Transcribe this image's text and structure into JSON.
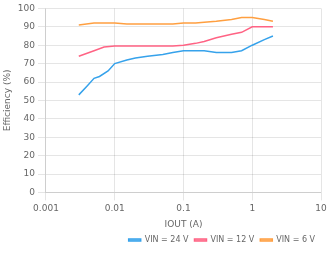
{
  "chart_data": {
    "type": "line",
    "xlabel": "IOUT (A)",
    "ylabel": "Efficiency (%)",
    "log": "x",
    "xlim": [
      0.001,
      10
    ],
    "xticks": [
      0.001,
      0.01,
      0.1,
      1,
      10
    ],
    "ylim": [
      0,
      100
    ],
    "yticks": [
      0,
      10,
      20,
      30,
      40,
      50,
      60,
      70,
      80,
      90,
      100
    ],
    "grid": true,
    "legend": "lower right",
    "series": [
      {
        "name": "VIN = 24 V",
        "x": [
          0.003,
          0.004,
          0.005,
          0.006,
          0.008,
          0.01,
          0.015,
          0.02,
          0.03,
          0.05,
          0.07,
          0.1,
          0.15,
          0.2,
          0.3,
          0.5,
          0.7,
          1.0,
          1.5,
          2.0
        ],
        "values": [
          53,
          58,
          62,
          63,
          66,
          70,
          72,
          73,
          74,
          75,
          76,
          77,
          77,
          77,
          76,
          76,
          77,
          80,
          83,
          85
        ]
      },
      {
        "name": "VIN = 12 V",
        "x": [
          0.003,
          0.005,
          0.007,
          0.01,
          0.015,
          0.02,
          0.03,
          0.05,
          0.07,
          0.1,
          0.15,
          0.2,
          0.3,
          0.5,
          0.7,
          1.0,
          1.5,
          2.0
        ],
        "values": [
          74,
          77,
          79,
          79.5,
          79.5,
          79.5,
          79.5,
          79.5,
          79.5,
          80,
          81,
          82,
          84,
          86,
          87,
          90,
          90,
          90
        ]
      },
      {
        "name": "VIN = 6 V",
        "x": [
          0.003,
          0.005,
          0.007,
          0.01,
          0.015,
          0.02,
          0.03,
          0.05,
          0.07,
          0.1,
          0.15,
          0.2,
          0.3,
          0.5,
          0.7,
          1.0,
          1.5,
          2.0
        ],
        "values": [
          91,
          92,
          92,
          92,
          91.5,
          91.5,
          91.5,
          91.5,
          91.5,
          92,
          92,
          92.5,
          93,
          94,
          95,
          95,
          94,
          93
        ]
      }
    ]
  }
}
